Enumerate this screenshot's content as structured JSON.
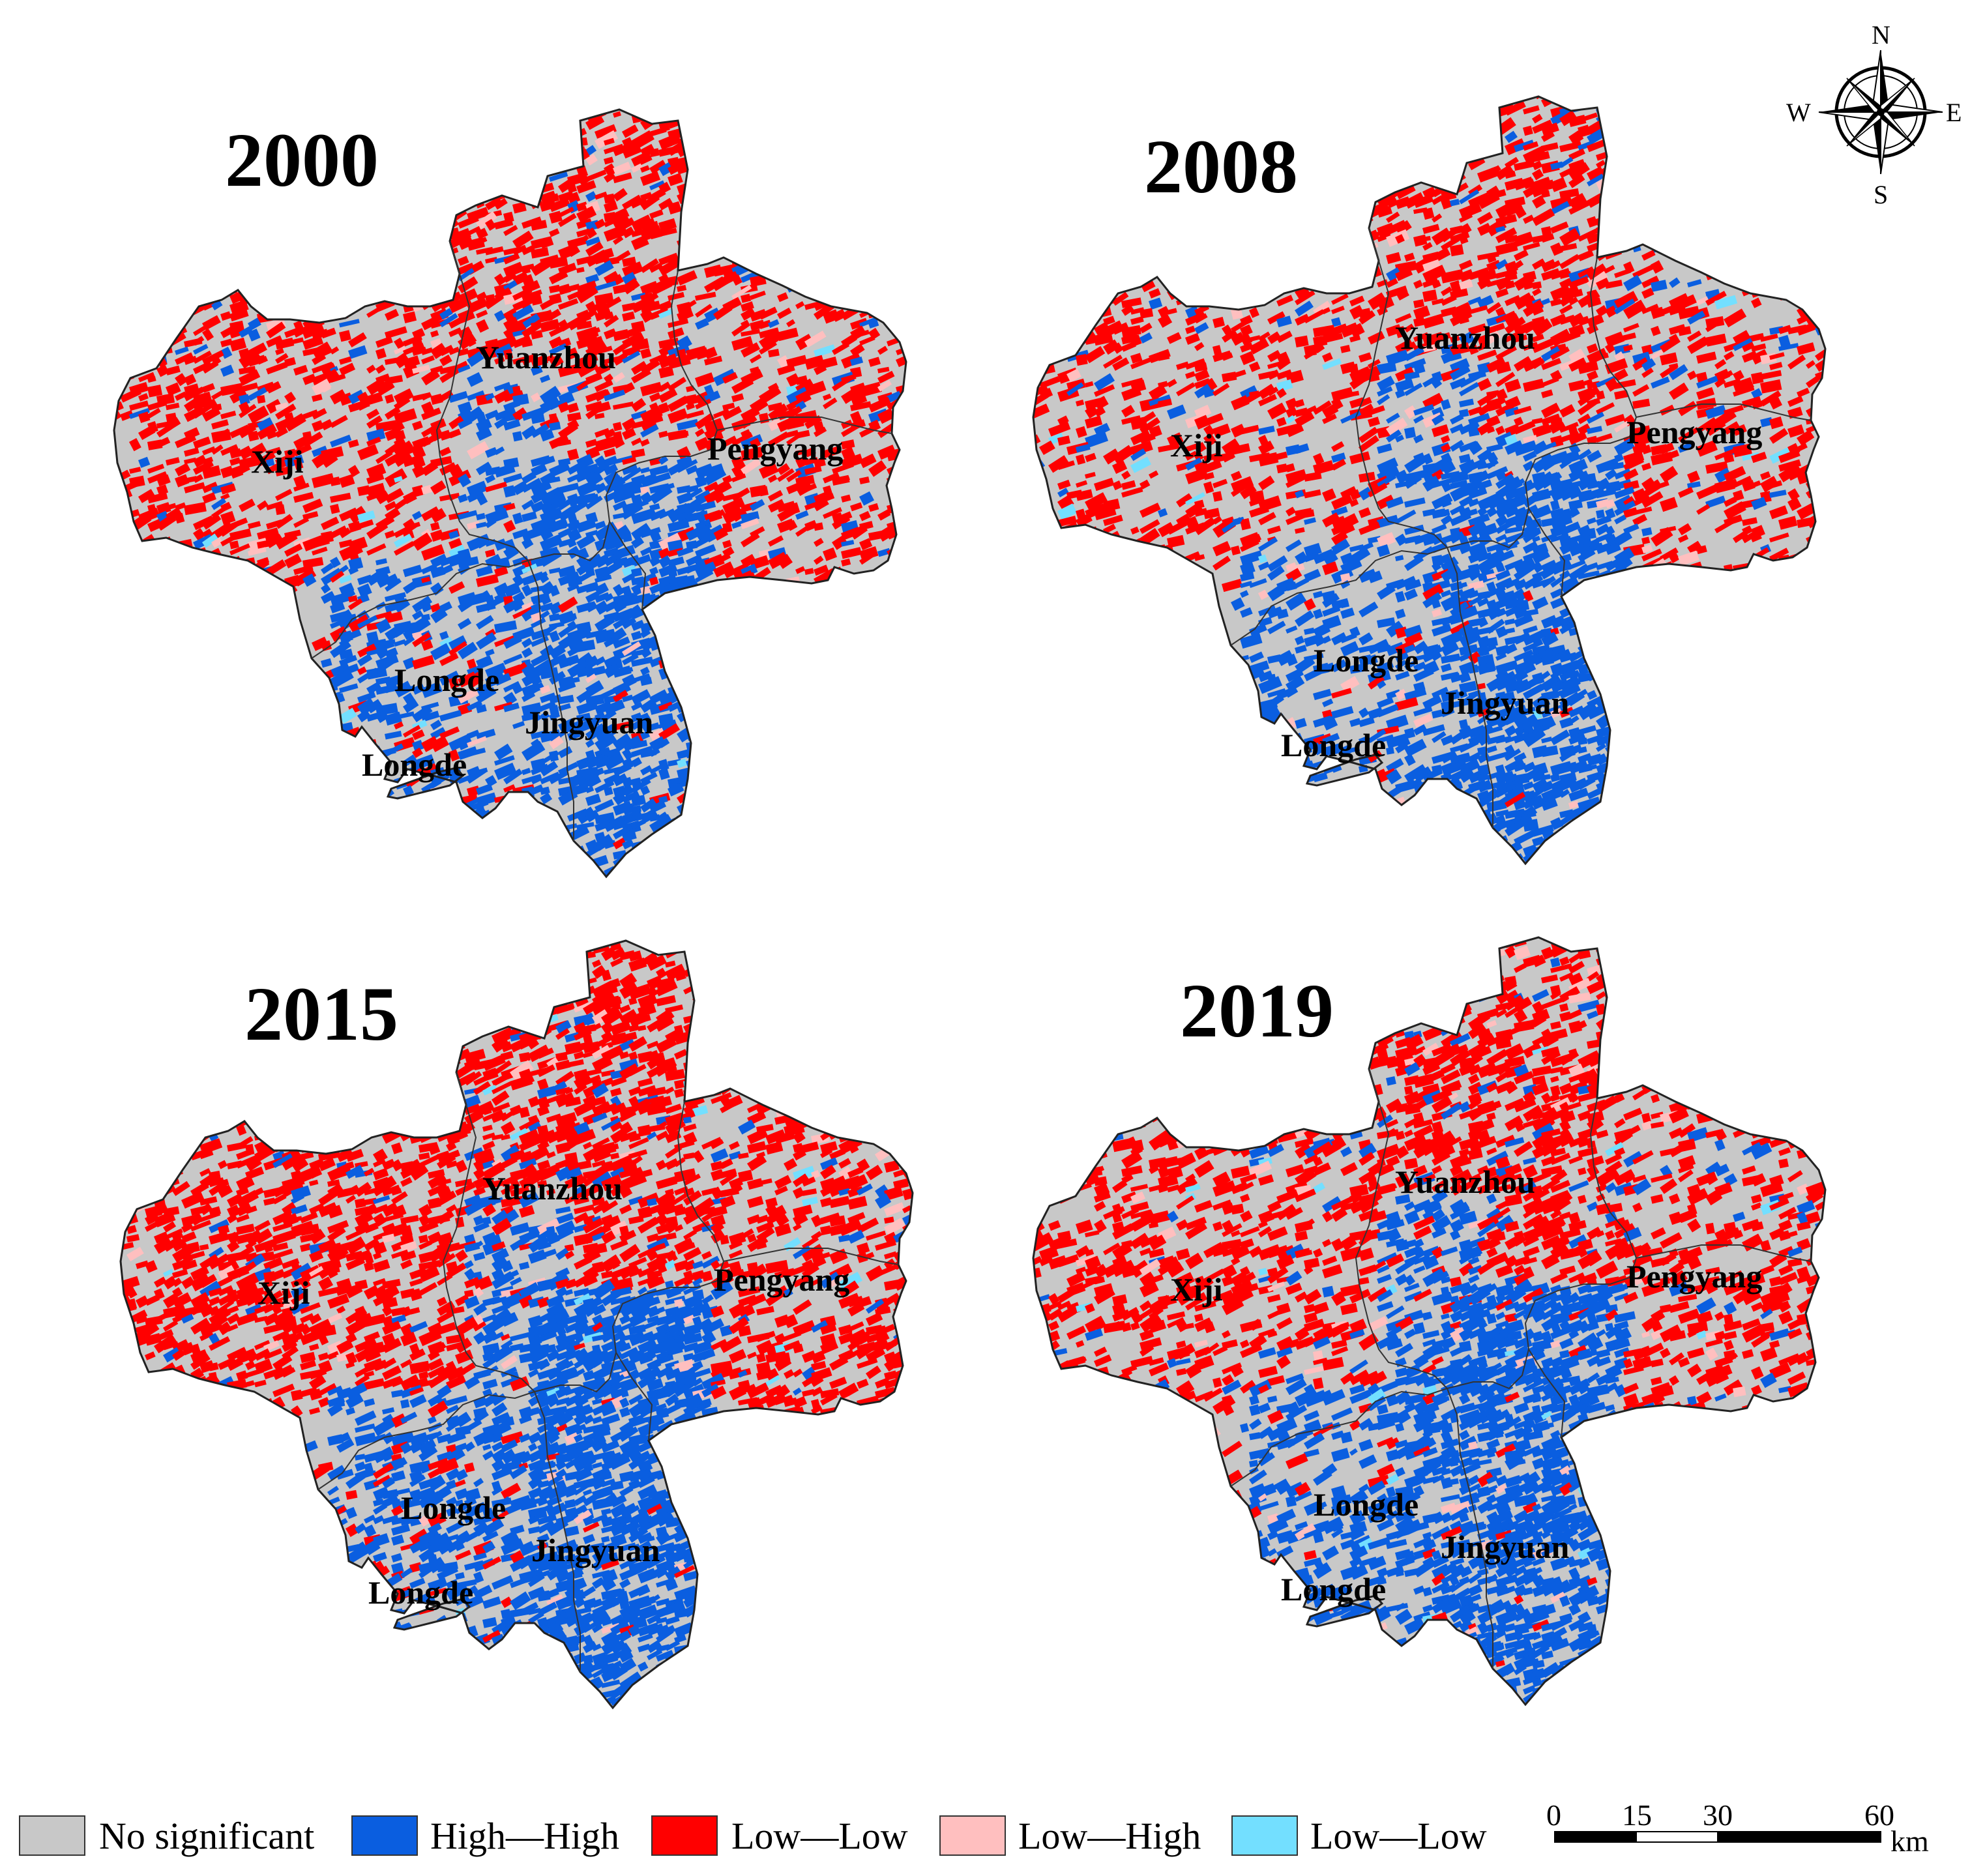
{
  "palette": {
    "no_significant": "#c8c8c8",
    "high_high": "#0a5ee0",
    "low_low": "#ff0000",
    "low_high": "#ffbfbf",
    "low_low_2": "#73dfff"
  },
  "maps": [
    {
      "year": "2000",
      "red_level": 0.55,
      "blue_level": 0.3
    },
    {
      "year": "2008",
      "red_level": 0.45,
      "blue_level": 0.38
    },
    {
      "year": "2015",
      "red_level": 0.7,
      "blue_level": 0.45
    },
    {
      "year": "2019",
      "red_level": 0.5,
      "blue_level": 0.4
    }
  ],
  "counties": {
    "yuanzhou": "Yuanzhou",
    "xiji": "Xiji",
    "pengyang": "Pengyang",
    "longde": "Longde",
    "longde_exclave": "Longde",
    "jingyuan": "Jingyuan"
  },
  "legend": [
    {
      "key": "no_significant",
      "label": "No significant",
      "color": "#c8c8c8"
    },
    {
      "key": "high_high",
      "label": "High—High",
      "color": "#0a5ee0"
    },
    {
      "key": "low_low",
      "label": "Low—Low",
      "color": "#ff0000"
    },
    {
      "key": "low_high",
      "label": "Low—High",
      "color": "#ffbfbf"
    },
    {
      "key": "low_low_2",
      "label": "Low—Low",
      "color": "#73dfff"
    }
  ],
  "scalebar": {
    "ticks": [
      "0",
      "15",
      "30",
      "60"
    ],
    "unit": "km"
  },
  "compass": {
    "n": "N",
    "s": "S",
    "e": "E",
    "w": "W"
  }
}
